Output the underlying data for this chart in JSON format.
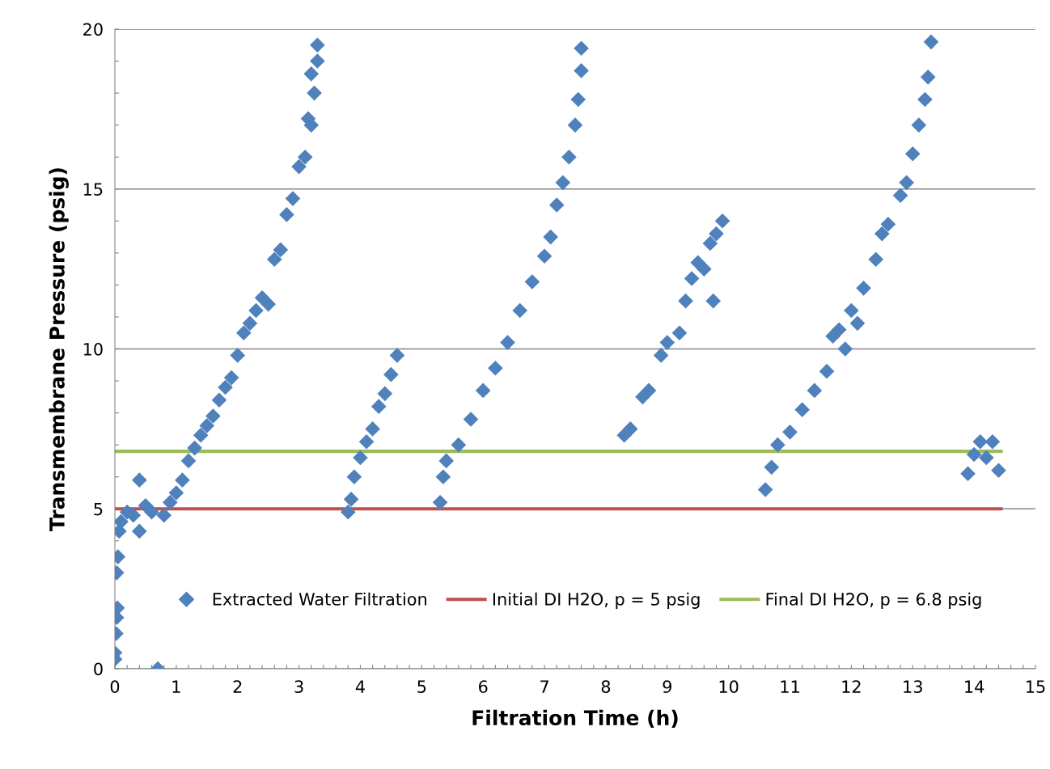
{
  "chart_data": {
    "type": "scatter",
    "xlabel": "Filtration Time (h)",
    "ylabel": "Transmembrane Pressure (psig)",
    "xlim": [
      0,
      15
    ],
    "ylim": [
      0,
      20
    ],
    "xticks": [
      0,
      {
        "value": 0.2,
        "label": null
      },
      {
        "value": 0.4,
        "label": null
      },
      {
        "value": 0.6,
        "label": null
      },
      {
        "value": 0.8,
        "label": null
      },
      1,
      {
        "value": 1.2,
        "label": null
      },
      {
        "value": 1.4,
        "label": null
      },
      {
        "value": 1.6,
        "label": null
      },
      {
        "value": 1.8,
        "label": null
      },
      2,
      {
        "value": 2.2,
        "label": null
      },
      {
        "value": 2.4,
        "label": null
      },
      {
        "value": 2.6,
        "label": null
      },
      {
        "value": 2.8,
        "label": null
      },
      3,
      {
        "value": 3.2,
        "label": null
      },
      {
        "value": 3.4,
        "label": null
      },
      {
        "value": 3.6,
        "label": null
      },
      {
        "value": 3.8,
        "label": null
      },
      4,
      {
        "value": 4.2,
        "label": null
      },
      {
        "value": 4.4,
        "label": null
      },
      {
        "value": 4.6,
        "label": null
      },
      {
        "value": 4.8,
        "label": null
      },
      5,
      {
        "value": 5.2,
        "label": null
      },
      {
        "value": 5.4,
        "label": null
      },
      {
        "value": 5.6,
        "label": null
      },
      {
        "value": 5.8,
        "label": null
      },
      6,
      {
        "value": 6.2,
        "label": null
      },
      {
        "value": 6.4,
        "label": null
      },
      {
        "value": 6.6,
        "label": null
      },
      {
        "value": 6.8,
        "label": null
      },
      7,
      {
        "value": 7.2,
        "label": null
      },
      {
        "value": 7.4,
        "label": null
      },
      {
        "value": 7.6,
        "label": null
      },
      {
        "value": 7.8,
        "label": null
      },
      8,
      {
        "value": 8.2,
        "label": null
      },
      {
        "value": 8.4,
        "label": null
      },
      {
        "value": 8.6,
        "label": null
      },
      {
        "value": 8.8,
        "label": null
      },
      9,
      {
        "value": 9.2,
        "label": null
      },
      {
        "value": 9.4,
        "label": null
      },
      {
        "value": 9.6,
        "label": null
      },
      {
        "value": 9.8,
        "label": null
      },
      10,
      {
        "value": 10.2,
        "label": null
      },
      {
        "value": 10.4,
        "label": null
      },
      {
        "value": 10.6,
        "label": null
      },
      {
        "value": 10.8,
        "label": null
      },
      11,
      {
        "value": 11.2,
        "label": null
      },
      {
        "value": 11.4,
        "label": null
      },
      {
        "value": 11.6,
        "label": null
      },
      {
        "value": 11.8,
        "label": null
      },
      12,
      {
        "value": 12.2,
        "label": null
      },
      {
        "value": 12.4,
        "label": null
      },
      {
        "value": 12.6,
        "label": null
      },
      {
        "value": 12.8,
        "label": null
      },
      13,
      {
        "value": 13.2,
        "label": null
      },
      {
        "value": 13.4,
        "label": null
      },
      {
        "value": 13.6,
        "label": null
      },
      {
        "value": 13.8,
        "label": null
      },
      14,
      {
        "value": 14.2,
        "label": null
      },
      {
        "value": 14.4,
        "label": null
      },
      {
        "value": 14.6,
        "label": null
      },
      {
        "value": 14.8,
        "label": null
      },
      15
    ],
    "yticks": [
      0,
      {
        "value": 1,
        "label": null
      },
      {
        "value": 2,
        "label": null
      },
      {
        "value": 3,
        "label": null
      },
      {
        "value": 4,
        "label": null
      },
      5,
      {
        "value": 6,
        "label": null
      },
      {
        "value": 7,
        "label": null
      },
      {
        "value": 8,
        "label": null
      },
      {
        "value": 9,
        "label": null
      },
      10,
      {
        "value": 11,
        "label": null
      },
      {
        "value": 12,
        "label": null
      },
      {
        "value": 13,
        "label": null
      },
      {
        "value": 14,
        "label": null
      },
      15,
      {
        "value": 16,
        "label": null
      },
      {
        "value": 17,
        "label": null
      },
      {
        "value": 18,
        "label": null
      },
      {
        "value": 19,
        "label": null
      },
      20
    ],
    "grid": "y",
    "legend": "bottom",
    "series": [
      {
        "name": "Extracted Water Filtration",
        "color": "#4f81bd",
        "marker": "diamond",
        "x": [
          0,
          0,
          0.02,
          0.03,
          0.04,
          0.03,
          0.05,
          0.07,
          0.1,
          0.2,
          0.3,
          0.4,
          0.4,
          0.5,
          0.6,
          0.7,
          0.8,
          0.9,
          1.0,
          1.1,
          1.2,
          1.3,
          1.4,
          1.5,
          1.6,
          1.7,
          1.8,
          1.9,
          2.0,
          2.1,
          2.2,
          2.3,
          2.4,
          2.5,
          2.6,
          2.7,
          2.8,
          2.9,
          3.0,
          3.1,
          3.15,
          3.2,
          3.25,
          3.3,
          3.3,
          3.2,
          3.8,
          3.85,
          3.9,
          4.0,
          4.1,
          4.2,
          4.3,
          4.4,
          4.5,
          4.6,
          5.3,
          5.35,
          5.4,
          5.6,
          5.8,
          6.0,
          6.2,
          6.4,
          6.6,
          6.8,
          7.0,
          7.1,
          7.2,
          7.3,
          7.4,
          7.5,
          7.55,
          7.6,
          7.6,
          8.3,
          8.4,
          8.6,
          8.7,
          8.9,
          9.0,
          9.2,
          9.3,
          9.4,
          9.5,
          9.6,
          9.7,
          9.8,
          9.9,
          9.75,
          10.6,
          10.7,
          10.8,
          11.0,
          11.2,
          11.4,
          11.6,
          11.7,
          11.8,
          11.9,
          12.0,
          12.1,
          12.2,
          12.4,
          12.5,
          12.6,
          12.8,
          12.9,
          13.0,
          13.1,
          13.2,
          13.25,
          13.3,
          13.9,
          14.0,
          14.1,
          14.2,
          14.3,
          14.4
        ],
        "values": [
          0.3,
          0.5,
          1.1,
          1.6,
          1.9,
          3.0,
          3.5,
          4.3,
          4.6,
          4.9,
          4.8,
          4.3,
          5.9,
          5.1,
          4.9,
          0.0,
          4.8,
          5.2,
          5.5,
          5.9,
          6.5,
          6.9,
          7.3,
          7.6,
          7.9,
          8.4,
          8.8,
          9.1,
          9.8,
          10.5,
          10.8,
          11.2,
          11.6,
          11.4,
          12.8,
          13.1,
          14.2,
          14.7,
          15.7,
          16.0,
          17.2,
          17.0,
          18.0,
          19.5,
          19.0,
          18.6,
          4.9,
          5.3,
          6.0,
          6.6,
          7.1,
          7.5,
          8.2,
          8.6,
          9.2,
          9.8,
          5.2,
          6.0,
          6.5,
          7.0,
          7.8,
          8.7,
          9.4,
          10.2,
          11.2,
          12.1,
          12.9,
          13.5,
          14.5,
          15.2,
          16.0,
          17.0,
          17.8,
          18.7,
          19.4,
          7.3,
          7.5,
          8.5,
          8.7,
          9.8,
          10.2,
          10.5,
          11.5,
          12.2,
          12.7,
          12.5,
          13.3,
          13.6,
          14.0,
          11.5,
          5.6,
          6.3,
          7.0,
          7.4,
          8.1,
          8.7,
          9.3,
          10.4,
          10.6,
          10.0,
          11.2,
          10.8,
          11.9,
          12.8,
          13.6,
          13.9,
          14.8,
          15.2,
          16.1,
          17.0,
          17.8,
          18.5,
          19.6,
          6.1,
          6.7,
          7.1,
          6.6,
          7.1,
          6.2
        ]
      },
      {
        "name": "Initial DI H2O, p = 5 psig",
        "color": "#c0504d",
        "type": "line",
        "x": [
          0,
          14.44
        ],
        "values": [
          5,
          5
        ]
      },
      {
        "name": "Final DI H2O, p = 6.8 psig",
        "color": "#9bbb59",
        "type": "line",
        "x": [
          0,
          14.44
        ],
        "values": [
          6.8,
          6.8
        ]
      }
    ]
  }
}
